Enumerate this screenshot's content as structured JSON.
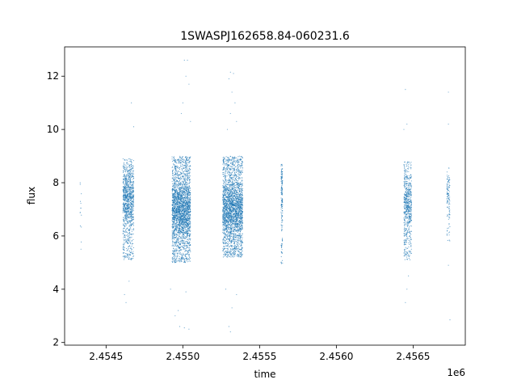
{
  "chart_data": {
    "type": "scatter",
    "title": "1SWASPJ162658.84-060231.6",
    "xlabel": "time",
    "ylabel": "flux",
    "x_offset_label": "1e6",
    "xlim": [
      2.45423,
      2.45684
    ],
    "ylim": [
      1.9,
      13.1
    ],
    "x_ticks": [
      2.4545,
      2.455,
      2.4555,
      2.456,
      2.4565
    ],
    "x_tick_labels": [
      "2.4545",
      "2.4550",
      "2.4555",
      "2.4560",
      "2.4565"
    ],
    "y_ticks": [
      2,
      4,
      6,
      8,
      10,
      12
    ],
    "y_tick_labels": [
      "2",
      "4",
      "6",
      "8",
      "10",
      "12"
    ],
    "grid": false,
    "point_color": "#1f77b4",
    "clusters": [
      {
        "x_start": 2.45433,
        "x_end": 2.45434,
        "y_low": 5.2,
        "y_high": 8.4,
        "y_center": 7.2,
        "count": 14
      },
      {
        "x_start": 2.45461,
        "x_end": 2.45468,
        "y_low": 5.1,
        "y_high": 8.9,
        "y_center": 7.4,
        "count": 1100
      },
      {
        "x_start": 2.45493,
        "x_end": 2.45505,
        "y_low": 5.0,
        "y_high": 9.0,
        "y_center": 7.0,
        "count": 2600
      },
      {
        "x_start": 2.45526,
        "x_end": 2.45539,
        "y_low": 5.2,
        "y_high": 9.0,
        "y_center": 7.0,
        "count": 2600
      },
      {
        "x_start": 2.45564,
        "x_end": 2.45565,
        "y_low": 4.9,
        "y_high": 8.7,
        "y_center": 7.6,
        "count": 180
      },
      {
        "x_start": 2.45644,
        "x_end": 2.45649,
        "y_low": 5.1,
        "y_high": 8.8,
        "y_center": 7.2,
        "count": 650
      },
      {
        "x_start": 2.45672,
        "x_end": 2.45674,
        "y_low": 5.7,
        "y_high": 8.6,
        "y_center": 7.5,
        "count": 120
      }
    ],
    "outliers": [
      {
        "x": 2.454665,
        "y": 11.0
      },
      {
        "x": 2.45468,
        "y": 10.1
      },
      {
        "x": 2.45463,
        "y": 3.5
      },
      {
        "x": 2.45462,
        "y": 3.8
      },
      {
        "x": 2.45465,
        "y": 4.3
      },
      {
        "x": 2.45501,
        "y": 12.6
      },
      {
        "x": 2.45503,
        "y": 12.6
      },
      {
        "x": 2.45502,
        "y": 12.0
      },
      {
        "x": 2.45504,
        "y": 11.7
      },
      {
        "x": 2.455,
        "y": 11.0
      },
      {
        "x": 2.45499,
        "y": 10.6
      },
      {
        "x": 2.45505,
        "y": 10.3
      },
      {
        "x": 2.45502,
        "y": 3.9
      },
      {
        "x": 2.45497,
        "y": 3.2
      },
      {
        "x": 2.45495,
        "y": 3.0
      },
      {
        "x": 2.45498,
        "y": 2.6
      },
      {
        "x": 2.45501,
        "y": 2.55
      },
      {
        "x": 2.45504,
        "y": 2.5
      },
      {
        "x": 2.45492,
        "y": 4.0
      },
      {
        "x": 2.45531,
        "y": 12.15
      },
      {
        "x": 2.45533,
        "y": 12.1
      },
      {
        "x": 2.4553,
        "y": 11.9
      },
      {
        "x": 2.45532,
        "y": 11.4
      },
      {
        "x": 2.45534,
        "y": 11.0
      },
      {
        "x": 2.45531,
        "y": 10.6
      },
      {
        "x": 2.45535,
        "y": 10.3
      },
      {
        "x": 2.45529,
        "y": 10.0
      },
      {
        "x": 2.4553,
        "y": 2.6
      },
      {
        "x": 2.45531,
        "y": 2.4
      },
      {
        "x": 2.45532,
        "y": 3.3
      },
      {
        "x": 2.45535,
        "y": 3.8
      },
      {
        "x": 2.45528,
        "y": 4.0
      },
      {
        "x": 2.45645,
        "y": 11.5
      },
      {
        "x": 2.45646,
        "y": 10.2
      },
      {
        "x": 2.45644,
        "y": 10.0
      },
      {
        "x": 2.45645,
        "y": 3.5
      },
      {
        "x": 2.45646,
        "y": 4.0
      },
      {
        "x": 2.45647,
        "y": 4.5
      },
      {
        "x": 2.45673,
        "y": 11.4
      },
      {
        "x": 2.45673,
        "y": 10.2
      },
      {
        "x": 2.45674,
        "y": 2.85
      },
      {
        "x": 2.45673,
        "y": 4.9
      }
    ]
  }
}
